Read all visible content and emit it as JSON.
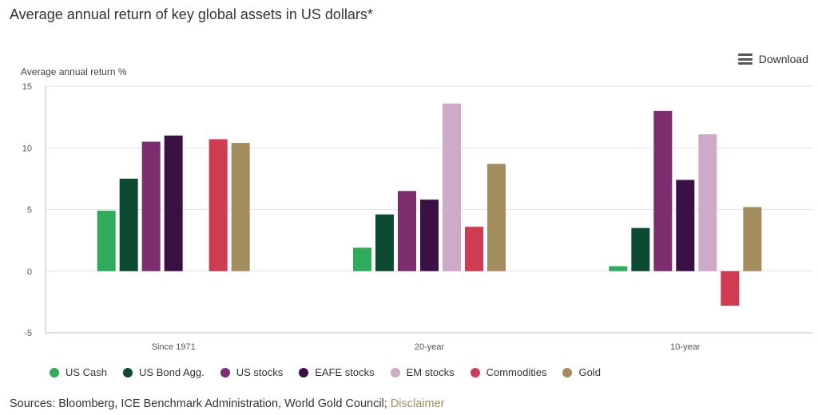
{
  "title": "Average annual return of key global assets in US dollars*",
  "download_label": "Download",
  "sources_text": "Sources: Bloomberg, ICE Benchmark Administration, World Gold Council;",
  "disclaimer_label": "Disclaimer",
  "chart_data": {
    "type": "bar",
    "ylabel": "Average annual return %",
    "ylim": [
      -5,
      15
    ],
    "yticks": [
      -5,
      0,
      5,
      10,
      15
    ],
    "grid": true,
    "legend_position": "bottom-left",
    "categories": [
      "Since 1971",
      "20-year",
      "10-year"
    ],
    "series": [
      {
        "name": "US Cash",
        "color": "#2eac5b",
        "values": [
          4.9,
          1.9,
          0.4
        ]
      },
      {
        "name": "US Bond Agg.",
        "color": "#0c4a34",
        "values": [
          7.5,
          4.6,
          3.5
        ]
      },
      {
        "name": "US stocks",
        "color": "#7b2d6e",
        "values": [
          10.5,
          6.5,
          13.0
        ]
      },
      {
        "name": "EAFE stocks",
        "color": "#3b1145",
        "values": [
          11.0,
          5.8,
          7.4
        ]
      },
      {
        "name": "EM stocks",
        "color": "#ccaac8",
        "values": [
          null,
          13.6,
          11.1
        ]
      },
      {
        "name": "Commodities",
        "color": "#cf3c52",
        "values": [
          10.7,
          3.6,
          -2.8
        ]
      },
      {
        "name": "Gold",
        "color": "#a38c5e",
        "values": [
          10.4,
          8.7,
          5.2
        ]
      }
    ]
  }
}
